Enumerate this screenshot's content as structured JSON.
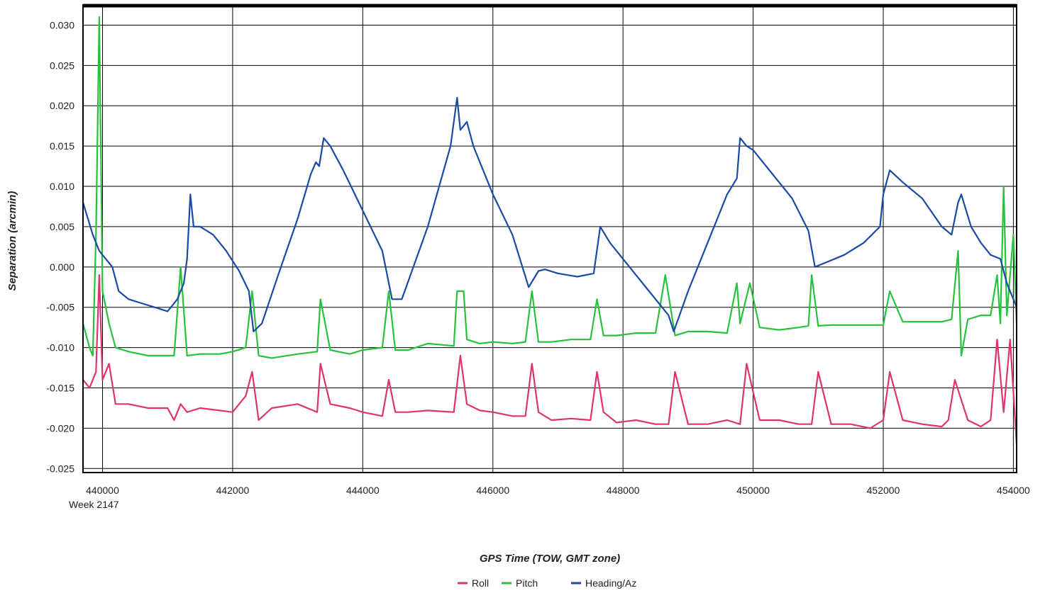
{
  "chart_data": {
    "type": "line",
    "title": "",
    "xlabel": "GPS Time (TOW, GMT zone)",
    "ylabel": "Separation (arcmin)",
    "x_sublabel": "Week 2147",
    "xlim": [
      439700,
      454050
    ],
    "ylim": [
      -0.0255,
      0.0325
    ],
    "x_ticks": [
      440000,
      442000,
      444000,
      446000,
      448000,
      450000,
      452000,
      454000
    ],
    "y_ticks": [
      0.03,
      0.025,
      0.02,
      0.015,
      0.01,
      0.005,
      0.0,
      -0.005,
      -0.01,
      -0.015,
      -0.02,
      -0.025
    ],
    "x_tick_labels": [
      "440000",
      "442000",
      "444000",
      "446000",
      "448000",
      "450000",
      "452000",
      "454000"
    ],
    "y_tick_labels": [
      "0.030",
      "0.025",
      "0.020",
      "0.015",
      "0.010",
      "0.005",
      "0.000",
      "-0.005",
      "-0.010",
      "-0.015",
      "-0.020",
      "-0.025"
    ],
    "grid": true,
    "legend_position": "bottom-center",
    "series": [
      {
        "name": "Roll",
        "color": "#e0336a",
        "x": [
          439700,
          439800,
          439900,
          439950,
          440000,
          440100,
          440200,
          440400,
          440700,
          441000,
          441100,
          441200,
          441300,
          441500,
          441800,
          442000,
          442200,
          442300,
          442400,
          442600,
          443000,
          443300,
          443350,
          443500,
          443800,
          444000,
          444300,
          444400,
          444500,
          444700,
          445000,
          445400,
          445500,
          445600,
          445800,
          446000,
          446300,
          446500,
          446600,
          446700,
          446900,
          447200,
          447500,
          447600,
          447700,
          447900,
          448200,
          448500,
          448700,
          448800,
          449000,
          449300,
          449600,
          449800,
          449900,
          450100,
          450400,
          450700,
          450900,
          451000,
          451200,
          451500,
          451800,
          452000,
          452100,
          452300,
          452600,
          452900,
          453000,
          453100,
          453300,
          453500,
          453650,
          453750,
          453850,
          453950,
          454050
        ],
        "values": [
          -0.014,
          -0.015,
          -0.013,
          -0.001,
          -0.014,
          -0.012,
          -0.017,
          -0.017,
          -0.0175,
          -0.0175,
          -0.019,
          -0.017,
          -0.018,
          -0.0175,
          -0.0178,
          -0.018,
          -0.016,
          -0.013,
          -0.019,
          -0.0175,
          -0.017,
          -0.018,
          -0.012,
          -0.017,
          -0.0175,
          -0.018,
          -0.0185,
          -0.014,
          -0.018,
          -0.018,
          -0.0178,
          -0.018,
          -0.011,
          -0.017,
          -0.0178,
          -0.018,
          -0.0185,
          -0.0185,
          -0.012,
          -0.018,
          -0.019,
          -0.0188,
          -0.019,
          -0.013,
          -0.018,
          -0.0193,
          -0.019,
          -0.0195,
          -0.0195,
          -0.013,
          -0.0195,
          -0.0195,
          -0.019,
          -0.0195,
          -0.012,
          -0.019,
          -0.019,
          -0.0195,
          -0.0195,
          -0.013,
          -0.0195,
          -0.0195,
          -0.02,
          -0.019,
          -0.013,
          -0.019,
          -0.0195,
          -0.0198,
          -0.019,
          -0.014,
          -0.019,
          -0.0198,
          -0.019,
          -0.009,
          -0.018,
          -0.009,
          -0.022
        ]
      },
      {
        "name": "Pitch",
        "color": "#27c23c",
        "x": [
          439700,
          439800,
          439850,
          439900,
          439950,
          440000,
          440100,
          440200,
          440400,
          440700,
          441000,
          441100,
          441200,
          441300,
          441500,
          441800,
          442000,
          442200,
          442300,
          442400,
          442600,
          443000,
          443300,
          443350,
          443500,
          443800,
          444000,
          444300,
          444400,
          444500,
          444700,
          445000,
          445400,
          445450,
          445550,
          445600,
          445800,
          446000,
          446300,
          446500,
          446600,
          446700,
          446900,
          447200,
          447500,
          447600,
          447700,
          447900,
          448200,
          448500,
          448650,
          448800,
          449000,
          449300,
          449600,
          449750,
          449800,
          449950,
          450100,
          450400,
          450700,
          450850,
          450900,
          451000,
          451200,
          451500,
          451800,
          452000,
          452100,
          452300,
          452600,
          452900,
          453050,
          453150,
          453200,
          453300,
          453500,
          453650,
          453750,
          453800,
          453850,
          453900,
          454000,
          454050
        ],
        "values": [
          -0.007,
          -0.01,
          -0.011,
          0.004,
          0.031,
          -0.003,
          -0.007,
          -0.01,
          -0.0105,
          -0.011,
          -0.011,
          -0.011,
          0.0,
          -0.011,
          -0.0108,
          -0.0108,
          -0.0105,
          -0.01,
          -0.003,
          -0.011,
          -0.0113,
          -0.0108,
          -0.0105,
          -0.004,
          -0.0103,
          -0.0108,
          -0.0103,
          -0.01,
          -0.003,
          -0.0103,
          -0.0103,
          -0.0095,
          -0.0098,
          -0.003,
          -0.003,
          -0.009,
          -0.0095,
          -0.0093,
          -0.0095,
          -0.0093,
          -0.003,
          -0.0093,
          -0.0093,
          -0.009,
          -0.009,
          -0.004,
          -0.0085,
          -0.0085,
          -0.0082,
          -0.0082,
          -0.001,
          -0.0085,
          -0.008,
          -0.008,
          -0.0082,
          -0.002,
          -0.007,
          -0.002,
          -0.0075,
          -0.0078,
          -0.0075,
          -0.0073,
          -0.001,
          -0.0073,
          -0.0072,
          -0.0072,
          -0.0072,
          -0.0072,
          -0.003,
          -0.0068,
          -0.0068,
          -0.0068,
          -0.0065,
          0.002,
          -0.011,
          -0.0065,
          -0.006,
          -0.006,
          -0.001,
          -0.007,
          0.01,
          -0.006,
          0.004,
          -0.007
        ]
      },
      {
        "name": "Heading/Az",
        "color": "#1a4aa6",
        "x": [
          439700,
          439850,
          439950,
          440050,
          440150,
          440250,
          440400,
          440600,
          440800,
          441000,
          441150,
          441250,
          441300,
          441350,
          441400,
          441500,
          441700,
          441900,
          442100,
          442250,
          442320,
          442450,
          442700,
          443000,
          443200,
          443280,
          443330,
          443400,
          443500,
          443700,
          444000,
          444300,
          444450,
          444600,
          445000,
          445350,
          445450,
          445500,
          445600,
          445700,
          446000,
          446300,
          446550,
          446700,
          446800,
          447000,
          447300,
          447550,
          447650,
          447800,
          448100,
          448400,
          448700,
          448780,
          449000,
          449300,
          449600,
          449750,
          449800,
          449900,
          450000,
          450300,
          450600,
          450850,
          450950,
          451100,
          451400,
          451700,
          451950,
          452000,
          452100,
          452300,
          452600,
          452900,
          453050,
          453150,
          453200,
          453350,
          453500,
          453650,
          453800,
          453900,
          454050
        ],
        "values": [
          0.008,
          0.004,
          0.002,
          0.001,
          0.0,
          -0.003,
          -0.004,
          -0.0045,
          -0.005,
          -0.0055,
          -0.004,
          -0.002,
          0.001,
          0.009,
          0.005,
          0.005,
          0.004,
          0.002,
          -0.0005,
          -0.003,
          -0.008,
          -0.007,
          -0.001,
          0.006,
          0.0115,
          0.013,
          0.0125,
          0.016,
          0.015,
          0.012,
          0.007,
          0.002,
          -0.004,
          -0.004,
          0.005,
          0.015,
          0.021,
          0.017,
          0.018,
          0.015,
          0.009,
          0.004,
          -0.0025,
          -0.0005,
          -0.0003,
          -0.0008,
          -0.0012,
          -0.0008,
          0.005,
          0.003,
          0.0,
          -0.003,
          -0.006,
          -0.008,
          -0.003,
          0.003,
          0.009,
          0.011,
          0.016,
          0.015,
          0.0145,
          0.0115,
          0.0085,
          0.0045,
          0.0,
          0.0005,
          0.0015,
          0.003,
          0.005,
          0.009,
          0.012,
          0.0105,
          0.0085,
          0.005,
          0.004,
          0.008,
          0.009,
          0.005,
          0.003,
          0.0015,
          0.001,
          -0.002,
          -0.005
        ]
      }
    ]
  }
}
